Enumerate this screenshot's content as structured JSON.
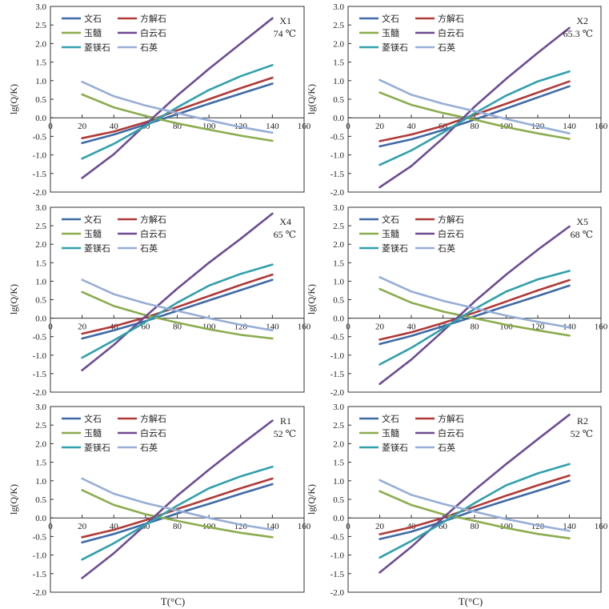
{
  "figure": {
    "y_label": "lg(Q/K)",
    "x_label": "T(°C)"
  },
  "legend_labels": [
    "文石",
    "方解石",
    "玉髓",
    "白云石",
    "菱镁石",
    "石英"
  ],
  "colors": {
    "文石": "#3f6aa6",
    "方解石": "#b03a38",
    "玉髓": "#8cac4e",
    "白云石": "#6e4c93",
    "菱镁石": "#31a0ad",
    "石英": "#97aed6"
  },
  "chart_data": [
    {
      "type": "line",
      "sample": "X1",
      "temperature_label": "74 ℃",
      "x": [
        20,
        40,
        60,
        80,
        100,
        120,
        140
      ],
      "xlim": [
        0,
        160
      ],
      "ylim": [
        -2.0,
        3.0
      ],
      "xticks": [
        0,
        20,
        40,
        60,
        80,
        100,
        120,
        140,
        160
      ],
      "yticks": [
        -2.0,
        -1.5,
        -1.0,
        -0.5,
        0.0,
        0.5,
        1.0,
        1.5,
        2.0,
        2.5,
        3.0
      ],
      "series": [
        {
          "name": "文石",
          "values": [
            -0.68,
            -0.45,
            -0.18,
            0.1,
            0.38,
            0.65,
            0.92
          ]
        },
        {
          "name": "方解石",
          "values": [
            -0.55,
            -0.37,
            -0.12,
            0.2,
            0.5,
            0.8,
            1.08
          ]
        },
        {
          "name": "玉髓",
          "values": [
            0.63,
            0.28,
            0.05,
            -0.15,
            -0.32,
            -0.48,
            -0.62
          ]
        },
        {
          "name": "白云石",
          "values": [
            -1.62,
            -0.98,
            -0.18,
            0.6,
            1.32,
            2.0,
            2.68
          ]
        },
        {
          "name": "菱镁石",
          "values": [
            -1.1,
            -0.7,
            -0.22,
            0.28,
            0.75,
            1.12,
            1.42
          ]
        },
        {
          "name": "石英",
          "values": [
            0.97,
            0.58,
            0.33,
            0.13,
            -0.07,
            -0.25,
            -0.4
          ]
        }
      ]
    },
    {
      "type": "line",
      "sample": "X2",
      "temperature_label": "65.3 ℃",
      "x": [
        20,
        40,
        60,
        80,
        100,
        120,
        140
      ],
      "xlim": [
        0,
        160
      ],
      "ylim": [
        -2.0,
        3.0
      ],
      "xticks": [
        0,
        20,
        40,
        60,
        80,
        100,
        120,
        140,
        160
      ],
      "yticks": [
        -2.0,
        -1.5,
        -1.0,
        -0.5,
        0.0,
        0.5,
        1.0,
        1.5,
        2.0,
        2.5,
        3.0
      ],
      "series": [
        {
          "name": "文石",
          "values": [
            -0.77,
            -0.58,
            -0.33,
            -0.05,
            0.25,
            0.55,
            0.85
          ]
        },
        {
          "name": "方解石",
          "values": [
            -0.63,
            -0.45,
            -0.22,
            0.08,
            0.38,
            0.68,
            0.98
          ]
        },
        {
          "name": "玉髓",
          "values": [
            0.68,
            0.35,
            0.13,
            -0.05,
            -0.25,
            -0.42,
            -0.57
          ]
        },
        {
          "name": "白云石",
          "values": [
            -1.87,
            -1.3,
            -0.55,
            0.3,
            1.05,
            1.75,
            2.42
          ]
        },
        {
          "name": "菱镁石",
          "values": [
            -1.27,
            -0.88,
            -0.4,
            0.12,
            0.6,
            0.98,
            1.25
          ]
        },
        {
          "name": "石英",
          "values": [
            1.02,
            0.62,
            0.38,
            0.18,
            -0.03,
            -0.23,
            -0.42
          ]
        }
      ]
    },
    {
      "type": "line",
      "sample": "X4",
      "temperature_label": "65 ℃",
      "x": [
        20,
        40,
        60,
        80,
        100,
        120,
        140
      ],
      "xlim": [
        0,
        160
      ],
      "ylim": [
        -2.0,
        3.0
      ],
      "xticks": [
        0,
        20,
        40,
        60,
        80,
        100,
        120,
        140,
        160
      ],
      "yticks": [
        -2.0,
        -1.5,
        -1.0,
        -0.5,
        0.0,
        0.5,
        1.0,
        1.5,
        2.0,
        2.5,
        3.0
      ],
      "series": [
        {
          "name": "文石",
          "values": [
            -0.55,
            -0.33,
            -0.08,
            0.2,
            0.48,
            0.76,
            1.04
          ]
        },
        {
          "name": "方解石",
          "values": [
            -0.42,
            -0.22,
            0.02,
            0.3,
            0.6,
            0.9,
            1.18
          ]
        },
        {
          "name": "玉髓",
          "values": [
            0.71,
            0.33,
            0.08,
            -0.12,
            -0.3,
            -0.45,
            -0.55
          ]
        },
        {
          "name": "白云石",
          "values": [
            -1.41,
            -0.72,
            0.05,
            0.8,
            1.5,
            2.15,
            2.83
          ]
        },
        {
          "name": "菱镁石",
          "values": [
            -1.07,
            -0.6,
            -0.1,
            0.42,
            0.88,
            1.2,
            1.45
          ]
        },
        {
          "name": "石英",
          "values": [
            1.04,
            0.65,
            0.4,
            0.2,
            0.0,
            -0.18,
            -0.33
          ]
        }
      ]
    },
    {
      "type": "line",
      "sample": "X5",
      "temperature_label": "68 ℃",
      "x": [
        20,
        40,
        60,
        80,
        100,
        120,
        140
      ],
      "xlim": [
        0,
        160
      ],
      "ylim": [
        -2.0,
        3.0
      ],
      "xticks": [
        0,
        20,
        40,
        60,
        80,
        100,
        120,
        140,
        160
      ],
      "yticks": [
        -2.0,
        -1.5,
        -1.0,
        -0.5,
        0.0,
        0.5,
        1.0,
        1.5,
        2.0,
        2.5,
        3.0
      ],
      "series": [
        {
          "name": "文石",
          "values": [
            -0.7,
            -0.48,
            -0.22,
            0.05,
            0.33,
            0.6,
            0.88
          ]
        },
        {
          "name": "方解石",
          "values": [
            -0.58,
            -0.38,
            -0.13,
            0.15,
            0.45,
            0.75,
            1.03
          ]
        },
        {
          "name": "玉髓",
          "values": [
            0.79,
            0.42,
            0.18,
            0.0,
            -0.18,
            -0.33,
            -0.47
          ]
        },
        {
          "name": "白云石",
          "values": [
            -1.78,
            -1.12,
            -0.35,
            0.45,
            1.18,
            1.85,
            2.48
          ]
        },
        {
          "name": "菱镁石",
          "values": [
            -1.25,
            -0.8,
            -0.28,
            0.25,
            0.72,
            1.05,
            1.28
          ]
        },
        {
          "name": "石英",
          "values": [
            1.11,
            0.72,
            0.47,
            0.27,
            0.07,
            -0.1,
            -0.25
          ]
        }
      ]
    },
    {
      "type": "line",
      "sample": "R1",
      "temperature_label": "52 ℃",
      "x": [
        20,
        40,
        60,
        80,
        100,
        120,
        140
      ],
      "xlim": [
        0,
        160
      ],
      "ylim": [
        -2.0,
        3.0
      ],
      "xticks": [
        0,
        20,
        40,
        60,
        80,
        100,
        120,
        140,
        160
      ],
      "yticks": [
        -2.0,
        -1.5,
        -1.0,
        -0.5,
        0.0,
        0.5,
        1.0,
        1.5,
        2.0,
        2.5,
        3.0
      ],
      "series": [
        {
          "name": "文石",
          "values": [
            -0.66,
            -0.43,
            -0.16,
            0.12,
            0.38,
            0.65,
            0.91
          ]
        },
        {
          "name": "方解石",
          "values": [
            -0.52,
            -0.32,
            -0.06,
            0.24,
            0.52,
            0.8,
            1.06
          ]
        },
        {
          "name": "玉髓",
          "values": [
            0.75,
            0.35,
            0.1,
            -0.08,
            -0.25,
            -0.4,
            -0.52
          ]
        },
        {
          "name": "白云石",
          "values": [
            -1.62,
            -0.95,
            -0.18,
            0.6,
            1.3,
            1.97,
            2.62
          ]
        },
        {
          "name": "菱镁石",
          "values": [
            -1.12,
            -0.68,
            -0.18,
            0.33,
            0.8,
            1.12,
            1.38
          ]
        },
        {
          "name": "石英",
          "values": [
            1.06,
            0.65,
            0.4,
            0.2,
            0.0,
            -0.18,
            -0.32
          ]
        }
      ]
    },
    {
      "type": "line",
      "sample": "R2",
      "temperature_label": "52 ℃",
      "x": [
        20,
        40,
        60,
        80,
        100,
        120,
        140
      ],
      "xlim": [
        0,
        160
      ],
      "ylim": [
        -2.0,
        3.0
      ],
      "xticks": [
        0,
        20,
        40,
        60,
        80,
        100,
        120,
        140,
        160
      ],
      "yticks": [
        -2.0,
        -1.5,
        -1.0,
        -0.5,
        0.0,
        0.5,
        1.0,
        1.5,
        2.0,
        2.5,
        3.0
      ],
      "series": [
        {
          "name": "文石",
          "values": [
            -0.57,
            -0.37,
            -0.1,
            0.2,
            0.47,
            0.73,
            1.0
          ]
        },
        {
          "name": "方解石",
          "values": [
            -0.44,
            -0.25,
            0.0,
            0.3,
            0.6,
            0.88,
            1.14
          ]
        },
        {
          "name": "玉髓",
          "values": [
            0.72,
            0.35,
            0.1,
            -0.08,
            -0.27,
            -0.43,
            -0.55
          ]
        },
        {
          "name": "白云石",
          "values": [
            -1.47,
            -0.78,
            0.0,
            0.75,
            1.45,
            2.12,
            2.78
          ]
        },
        {
          "name": "菱镁石",
          "values": [
            -1.07,
            -0.62,
            -0.12,
            0.4,
            0.88,
            1.2,
            1.45
          ]
        },
        {
          "name": "石英",
          "values": [
            1.02,
            0.62,
            0.38,
            0.17,
            -0.03,
            -0.2,
            -0.35
          ]
        }
      ]
    }
  ]
}
